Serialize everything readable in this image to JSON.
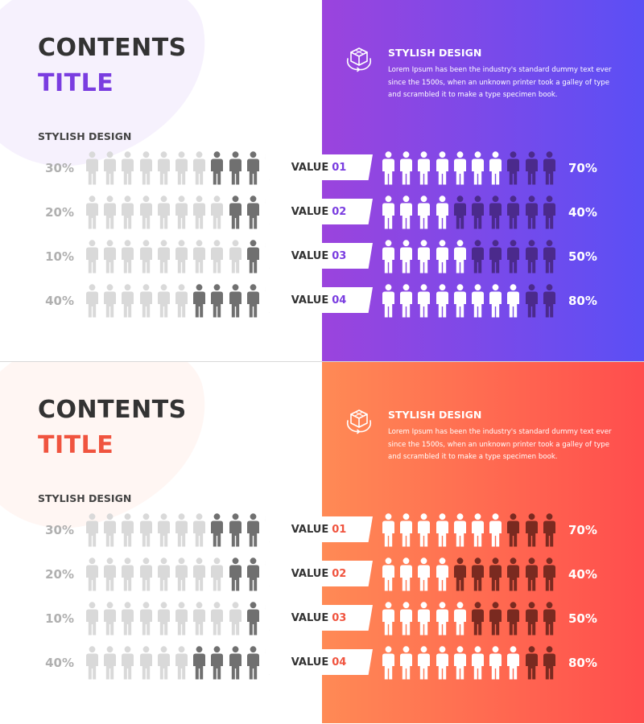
{
  "slides": [
    {
      "theme": {
        "accent": "#7a3de0",
        "gradient_start": "#9b44dd",
        "gradient_end": "#5b4ff5",
        "blob_color": "#7a3de0",
        "dark_figure": "#4b2a8c",
        "light_figure": "#ffffff",
        "gray_light": "#d9d9d9",
        "gray_dark": "#707070"
      },
      "heading_line1": "CONTENTS",
      "heading_line2": "TITLE",
      "subheading": "STYLISH DESIGN",
      "feature": {
        "icon": "cube-rotate-icon",
        "title": "STYLISH DESIGN",
        "text": "Lorem Ipsum has been the industry's standard dummy text ever since the 1500s, when an unknown printer took a galley of type and scrambled it to make a type specimen book."
      },
      "rows": [
        {
          "label_word": "VALUE",
          "label_num": "01",
          "left_percent": "30%",
          "left_fraction": 0.3,
          "right_percent": "70%",
          "right_fraction": 0.7
        },
        {
          "label_word": "VALUE",
          "label_num": "02",
          "left_percent": "20%",
          "left_fraction": 0.2,
          "right_percent": "40%",
          "right_fraction": 0.4
        },
        {
          "label_word": "VALUE",
          "label_num": "03",
          "left_percent": "10%",
          "left_fraction": 0.1,
          "right_percent": "50%",
          "right_fraction": 0.5
        },
        {
          "label_word": "VALUE",
          "label_num": "04",
          "left_percent": "40%",
          "left_fraction": 0.4,
          "right_percent": "80%",
          "right_fraction": 0.8
        }
      ]
    },
    {
      "theme": {
        "accent": "#f0543f",
        "gradient_start": "#ff8a55",
        "gradient_end": "#ff4d4d",
        "blob_color": "#ff7a50",
        "dark_figure": "#7a2a20",
        "light_figure": "#ffffff",
        "gray_light": "#d9d9d9",
        "gray_dark": "#707070"
      },
      "heading_line1": "CONTENTS",
      "heading_line2": "TITLE",
      "subheading": "STYLISH DESIGN",
      "feature": {
        "icon": "cube-rotate-icon",
        "title": "STYLISH DESIGN",
        "text": "Lorem Ipsum has been the industry's standard dummy text ever since the 1500s, when an unknown printer took a galley of type and scrambled it to make a type specimen book."
      },
      "rows": [
        {
          "label_word": "VALUE",
          "label_num": "01",
          "left_percent": "30%",
          "left_fraction": 0.3,
          "right_percent": "70%",
          "right_fraction": 0.7
        },
        {
          "label_word": "VALUE",
          "label_num": "02",
          "left_percent": "20%",
          "left_fraction": 0.2,
          "right_percent": "40%",
          "right_fraction": 0.4
        },
        {
          "label_word": "VALUE",
          "label_num": "03",
          "left_percent": "10%",
          "left_fraction": 0.1,
          "right_percent": "50%",
          "right_fraction": 0.5
        },
        {
          "label_word": "VALUE",
          "label_num": "04",
          "left_percent": "40%",
          "left_fraction": 0.4,
          "right_percent": "80%",
          "right_fraction": 0.8
        }
      ]
    }
  ]
}
